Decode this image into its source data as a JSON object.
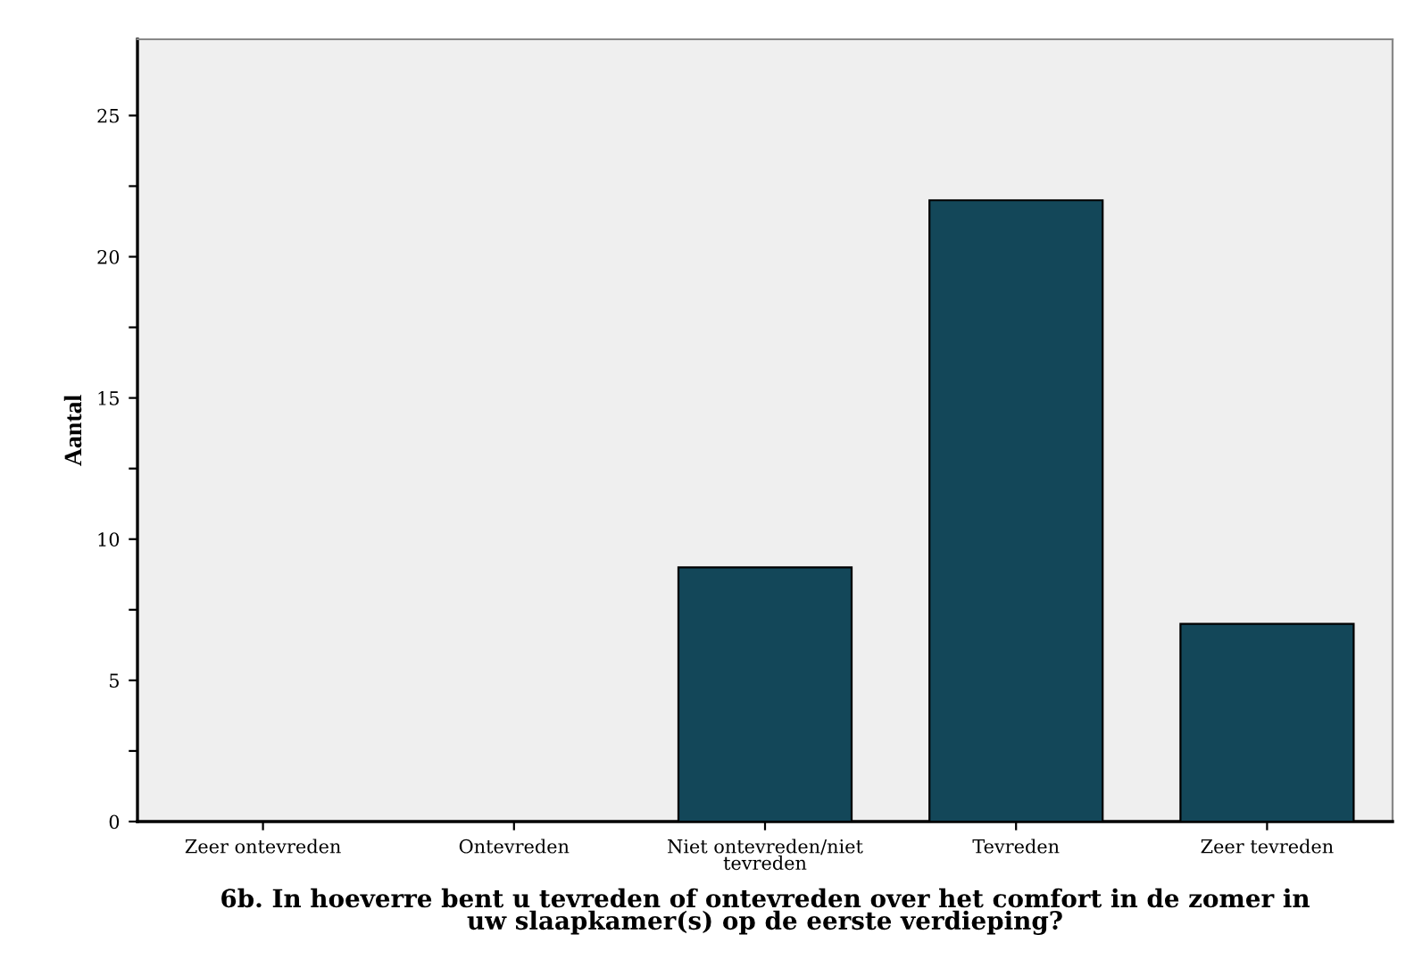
{
  "chart_data": {
    "type": "bar",
    "xlabel": "6b. In hoeverre bent u tevreden of ontevreden over het comfort in de zomer in\nuw slaapkamer(s) op de eerste verdieping?",
    "ylabel": "Aantal",
    "categories": [
      "Zeer ontevreden",
      "Ontevreden",
      "Niet ontevreden/niet\ntevreden",
      "Tevreden",
      "Zeer tevreden"
    ],
    "values": [
      0,
      0,
      9,
      22,
      7
    ],
    "color": "#134759",
    "ylim": [
      0,
      27.7
    ],
    "yticks": [
      0,
      {
        "value": 2.5,
        "label": null
      },
      5,
      {
        "value": 7.5,
        "label": null
      },
      10,
      {
        "value": 12.5,
        "label": null
      },
      15,
      {
        "value": 17.5,
        "label": null
      },
      20,
      {
        "value": 22.5,
        "label": null
      },
      25
    ],
    "grid": false
  }
}
